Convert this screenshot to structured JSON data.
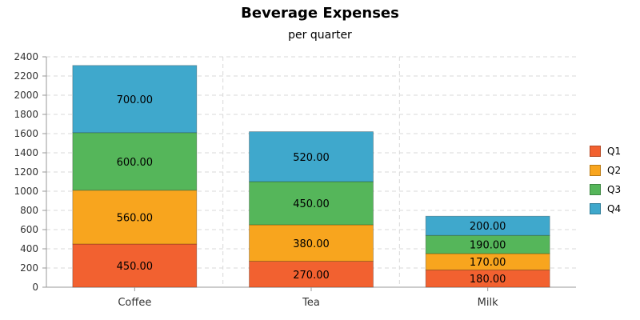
{
  "chart_data": {
    "type": "bar",
    "stacked": true,
    "title": "Beverage Expenses",
    "subtitle": "per quarter",
    "categories": [
      "Coffee",
      "Tea",
      "Milk"
    ],
    "series": [
      {
        "name": "Q1",
        "color": "#f26130",
        "values": [
          450,
          270,
          180
        ]
      },
      {
        "name": "Q2",
        "color": "#f8a51e",
        "values": [
          560,
          380,
          170
        ]
      },
      {
        "name": "Q3",
        "color": "#55b65a",
        "values": [
          600,
          450,
          190
        ]
      },
      {
        "name": "Q4",
        "color": "#3fa8cc",
        "values": [
          700,
          520,
          200
        ]
      }
    ],
    "ylim": [
      0,
      2400
    ],
    "yticks": [
      0,
      200,
      400,
      600,
      800,
      1000,
      1200,
      1400,
      1600,
      1800,
      2000,
      2200,
      2400
    ],
    "value_format_decimals": 2,
    "grid": true,
    "legend_position": "right"
  }
}
